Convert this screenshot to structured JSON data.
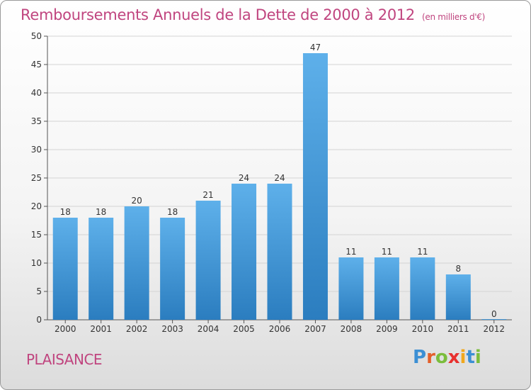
{
  "title": "Remboursements Annuels de la Dette de 2000 à 2012",
  "subtitle": "(en milliers d'€)",
  "city": "PLAISANCE",
  "logo": {
    "text": "Proxiti",
    "letter_colors": [
      "#3b8fd4",
      "#e35f2a",
      "#7bbd3c",
      "#e8312f",
      "#f0a81e",
      "#3b8fd4",
      "#7bbd3c"
    ]
  },
  "colors": {
    "bar_top": "#5eb0ea",
    "bar_bottom": "#2b7dbf",
    "title": "#c0457f",
    "axis": "#555555",
    "grid": "#d4d4d4"
  },
  "chart_data": {
    "type": "bar",
    "categories": [
      "2000",
      "2001",
      "2002",
      "2003",
      "2004",
      "2005",
      "2006",
      "2007",
      "2008",
      "2009",
      "2010",
      "2011",
      "2012"
    ],
    "values": [
      18,
      18,
      20,
      18,
      21,
      24,
      24,
      47,
      11,
      11,
      11,
      8,
      0
    ],
    "ylim": [
      0,
      50
    ],
    "yticks": [
      0,
      5,
      10,
      15,
      20,
      25,
      30,
      35,
      40,
      45,
      50
    ],
    "title": "Remboursements Annuels de la Dette de 2000 à 2012",
    "xlabel": "",
    "ylabel": "",
    "grid": true
  }
}
